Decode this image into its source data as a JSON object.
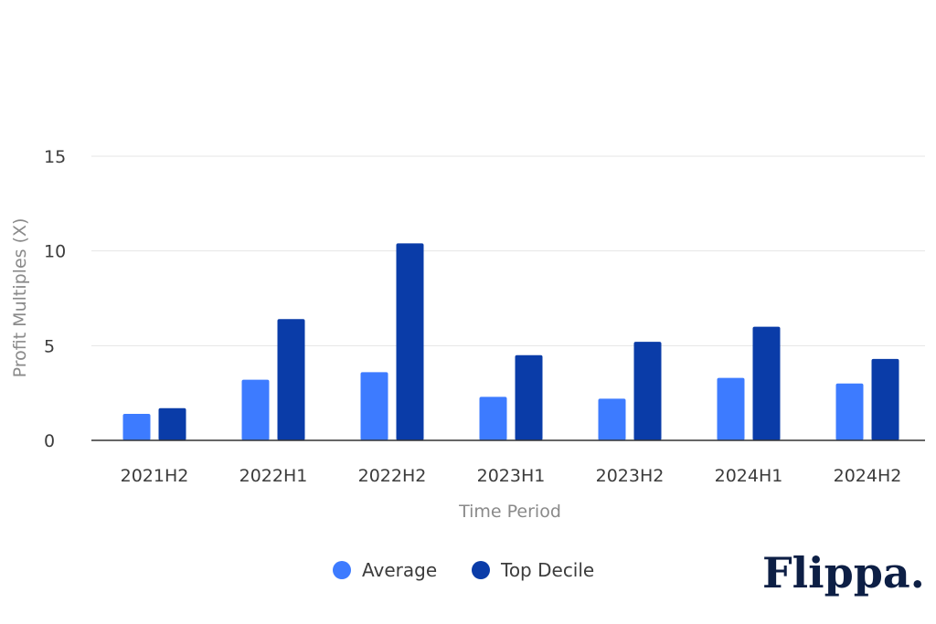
{
  "chart_data": {
    "type": "bar",
    "categories": [
      "2021H2",
      "2022H1",
      "2022H2",
      "2023H1",
      "2023H2",
      "2024H1",
      "2024H2"
    ],
    "series": [
      {
        "name": "Average",
        "values": [
          1.4,
          3.2,
          3.6,
          2.3,
          2.2,
          3.3,
          3.0
        ]
      },
      {
        "name": "Top Decile",
        "values": [
          1.7,
          6.4,
          10.4,
          4.5,
          5.2,
          6.0,
          4.3
        ]
      }
    ],
    "title": "",
    "xlabel": "Time Period",
    "ylabel": "Profit Multiples (X)",
    "ylim": [
      0,
      15
    ],
    "yticks": [
      0,
      5,
      10,
      15
    ],
    "grid": true,
    "legend_position": "bottom-center"
  },
  "colors": {
    "Average": "#3d7bff",
    "Top Decile": "#0a3ca8",
    "grid": "#e4e4e4",
    "axis": "#333333"
  },
  "logo": {
    "text": "Flippa."
  }
}
